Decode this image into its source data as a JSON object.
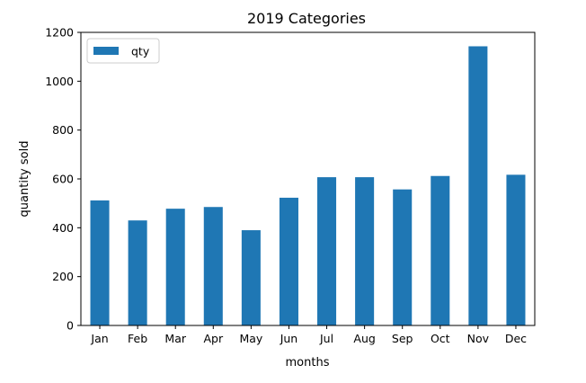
{
  "chart_data": {
    "type": "bar",
    "title": "2019 Categories",
    "xlabel": "months",
    "ylabel": "quantity sold",
    "categories": [
      "Jan",
      "Feb",
      "Mar",
      "Apr",
      "May",
      "Jun",
      "Jul",
      "Aug",
      "Sep",
      "Oct",
      "Nov",
      "Dec"
    ],
    "series": [
      {
        "name": "qty",
        "values": [
          512,
          430,
          478,
          485,
          390,
          523,
          607,
          607,
          557,
          612,
          1143,
          617
        ],
        "color": "#1f77b4"
      }
    ],
    "ylim": [
      0,
      1200
    ],
    "yticks": [
      0,
      200,
      400,
      600,
      800,
      1000,
      1200
    ],
    "legend": "top-left",
    "grid": false
  }
}
